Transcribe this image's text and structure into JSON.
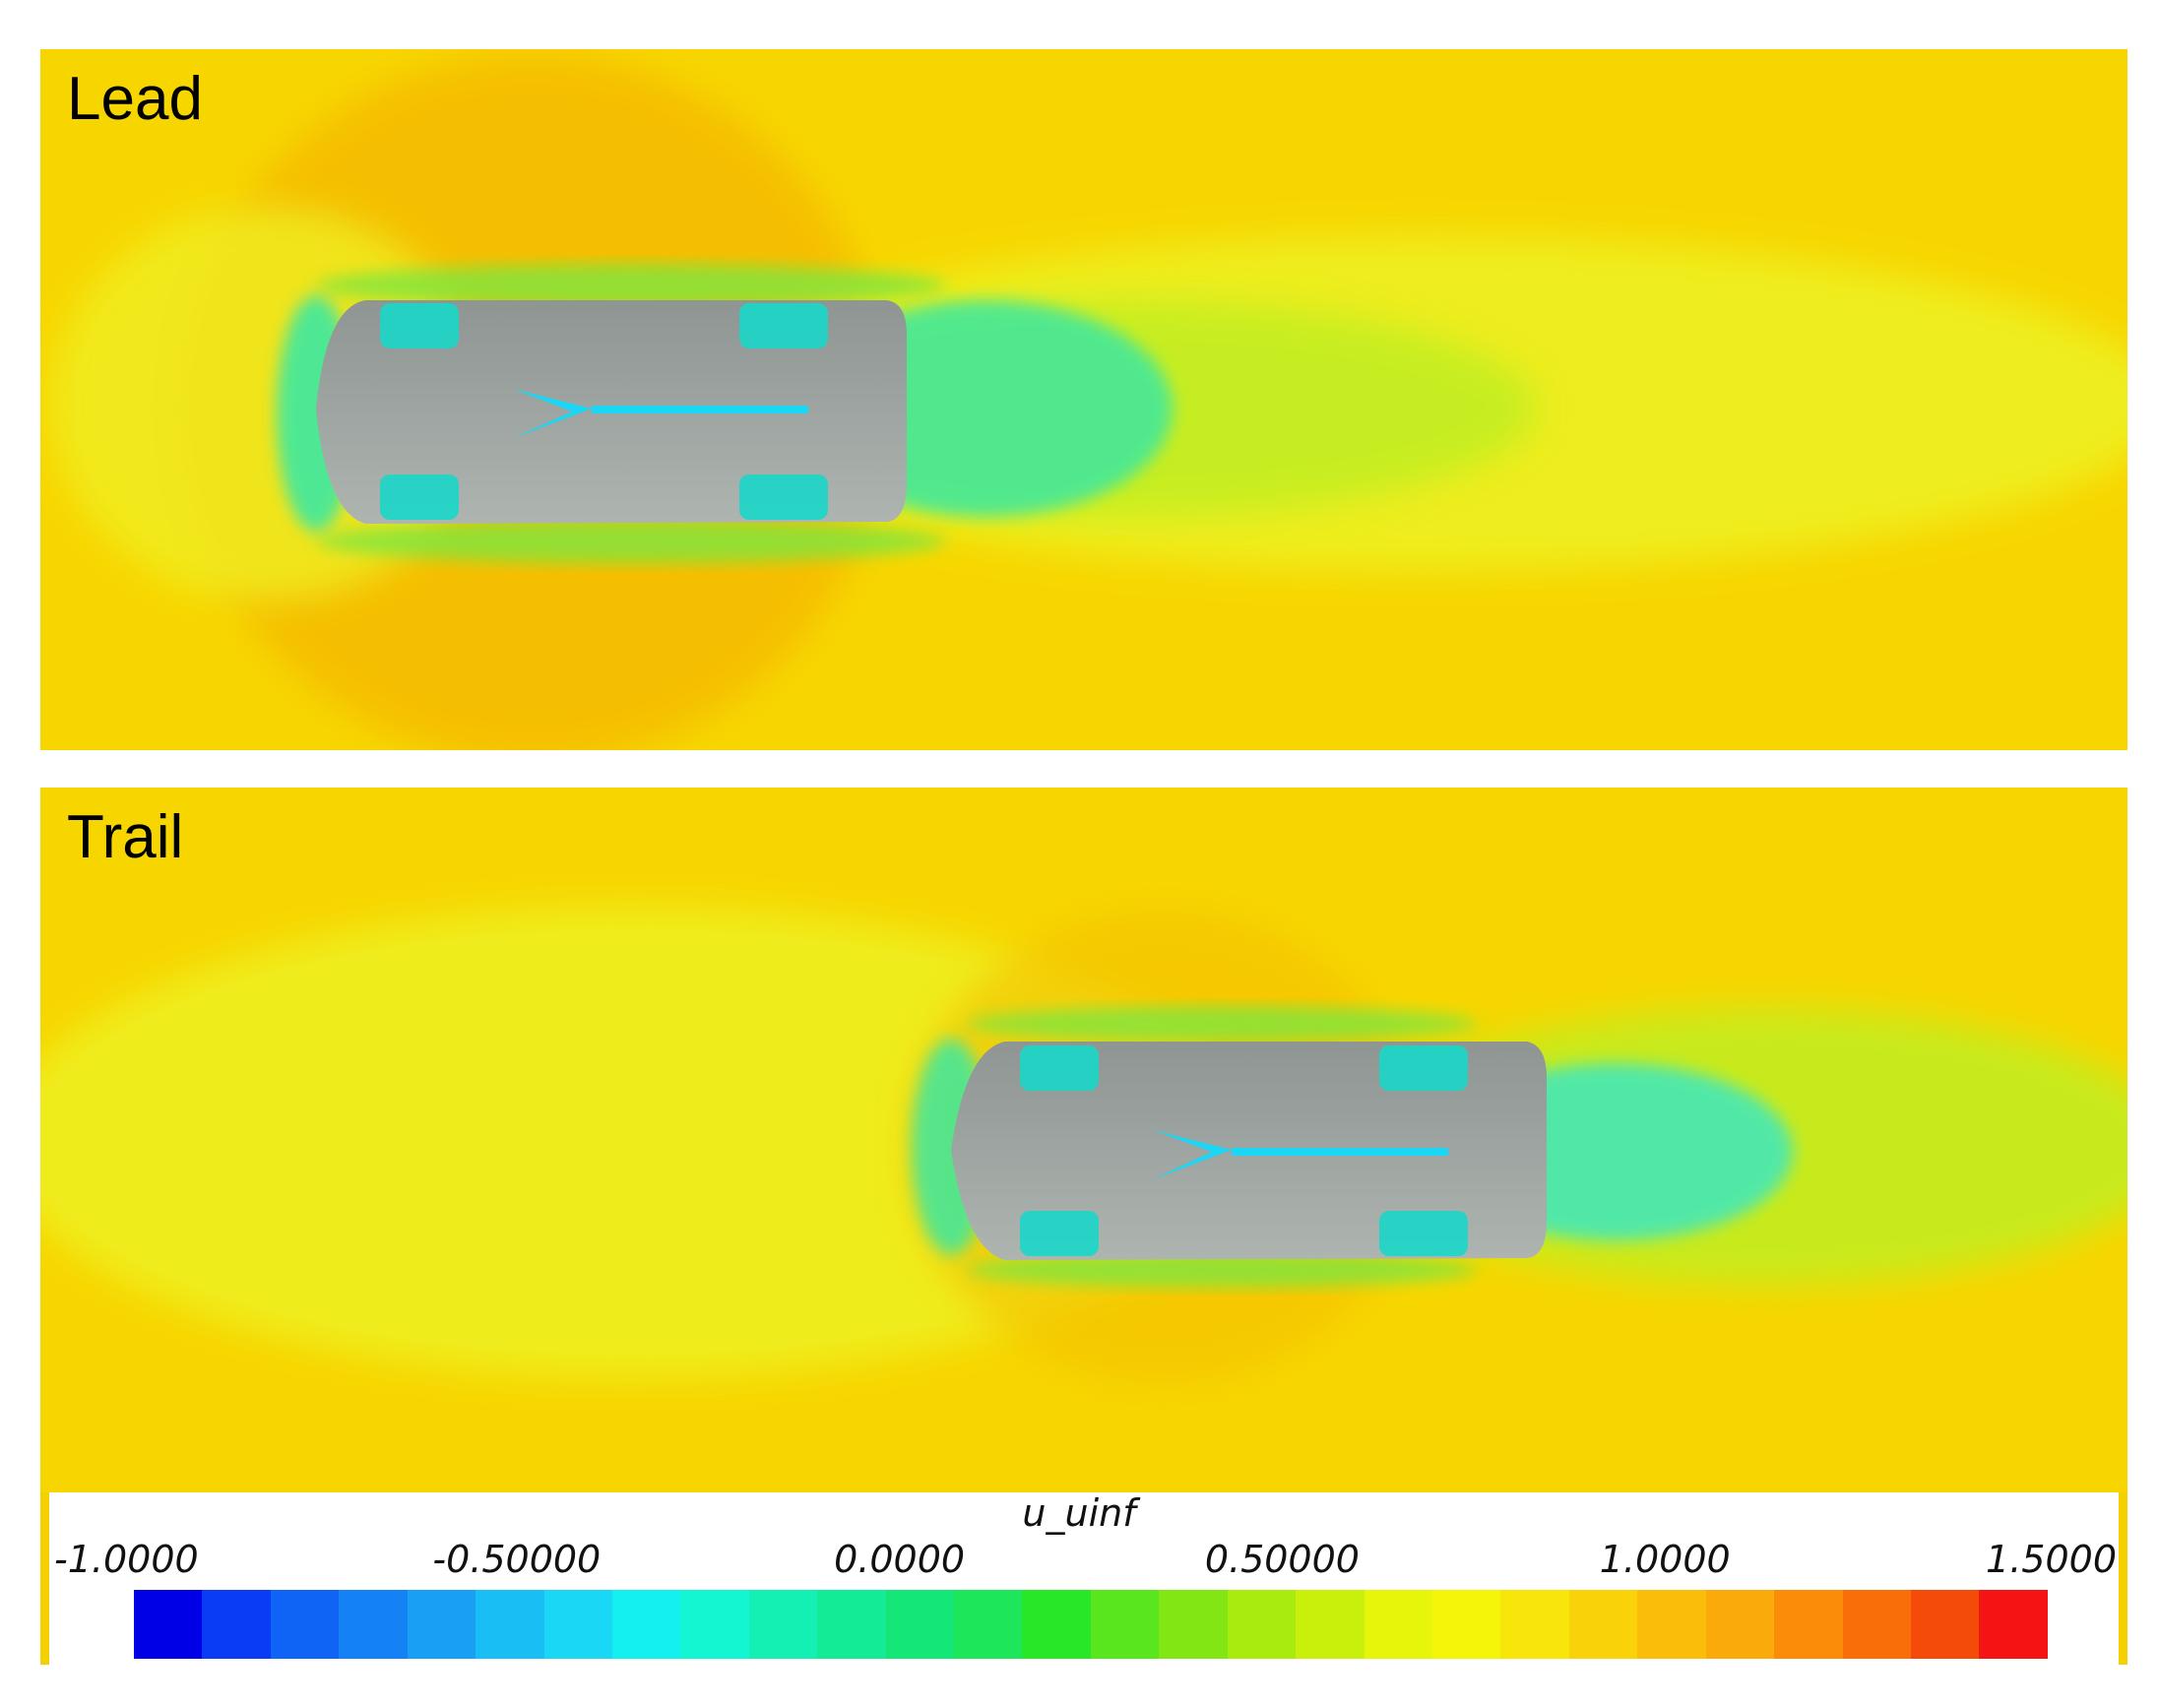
{
  "panels": [
    {
      "label": "Lead"
    },
    {
      "label": "Trail"
    }
  ],
  "colorbar": {
    "title": "u_uinf",
    "ticks": [
      {
        "label": "-1.0000",
        "value": -1.0
      },
      {
        "label": "-0.50000",
        "value": -0.5
      },
      {
        "label": "0.0000",
        "value": 0.0
      },
      {
        "label": "0.50000",
        "value": 0.5
      },
      {
        "label": "1.0000",
        "value": 1.0
      },
      {
        "label": "1.5000",
        "value": 1.5
      }
    ],
    "min": -1.0,
    "max": 1.5,
    "colors": [
      "#0000e6",
      "#0a3cf5",
      "#0f64f5",
      "#1482f5",
      "#19a0f5",
      "#19bef5",
      "#19d7f5",
      "#14f0f0",
      "#14f5d2",
      "#14f0b4",
      "#14eb96",
      "#14e678",
      "#1ee65a",
      "#28e628",
      "#5ae61e",
      "#82e614",
      "#aaeb0f",
      "#c8f00a",
      "#e6f50a",
      "#f5f50a",
      "#f8e60a",
      "#fad20a",
      "#fabe0a",
      "#faaa0a",
      "#fa8c0a",
      "#fa6e0a",
      "#f54b0a",
      "#f51414"
    ],
    "background_flow_color": "#f7d600",
    "vehicle_color": "#9aa09c"
  }
}
